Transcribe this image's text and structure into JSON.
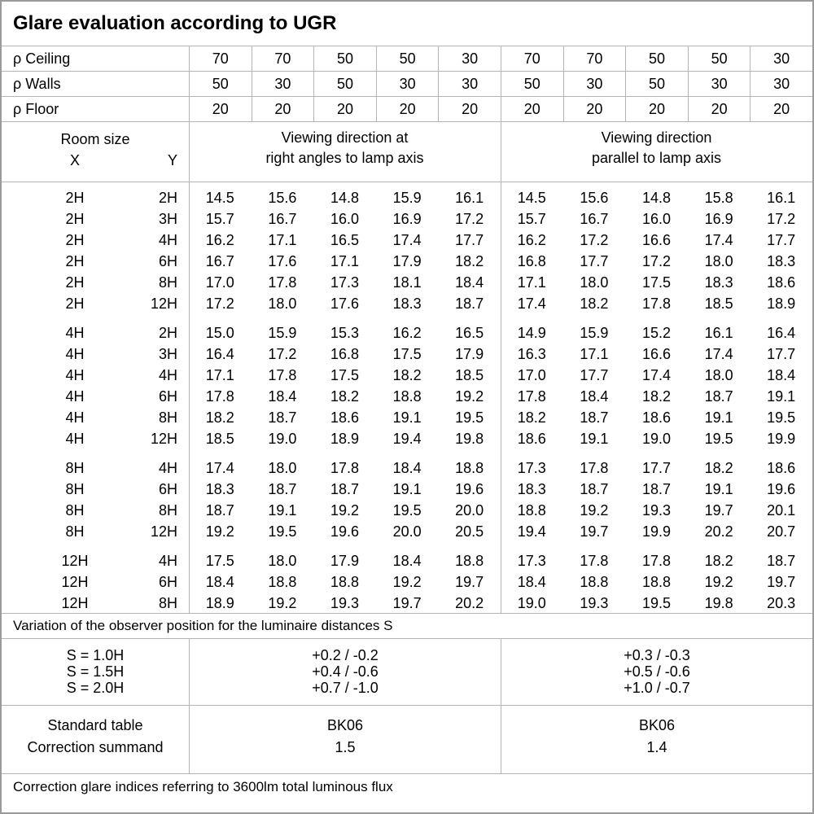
{
  "title": "Glare evaluation according to UGR",
  "reflectance_table": {
    "rows": [
      {
        "id": "ceiling",
        "label": "ρ Ceiling",
        "values": [
          "70",
          "70",
          "50",
          "50",
          "30",
          "70",
          "70",
          "50",
          "50",
          "30"
        ]
      },
      {
        "id": "walls",
        "label": "ρ Walls",
        "values": [
          "50",
          "30",
          "50",
          "30",
          "30",
          "50",
          "30",
          "50",
          "30",
          "30"
        ]
      },
      {
        "id": "floor",
        "label": "ρ Floor",
        "values": [
          "20",
          "20",
          "20",
          "20",
          "20",
          "20",
          "20",
          "20",
          "20",
          "20"
        ]
      }
    ]
  },
  "header": {
    "room_size_label": "Room size",
    "x_label": "X",
    "y_label": "Y",
    "right_angles_line1": "Viewing direction at",
    "right_angles_line2": "right angles to lamp axis",
    "parallel_line1": "Viewing direction",
    "parallel_line2": "parallel to lamp axis"
  },
  "ugr_table": {
    "blocks": [
      {
        "rows": [
          {
            "x": "2H",
            "y": "2H",
            "right_angles": [
              "14.5",
              "15.6",
              "14.8",
              "15.9",
              "16.1"
            ],
            "parallel": [
              "14.5",
              "15.6",
              "14.8",
              "15.8",
              "16.1"
            ]
          },
          {
            "x": "2H",
            "y": "3H",
            "right_angles": [
              "15.7",
              "16.7",
              "16.0",
              "16.9",
              "17.2"
            ],
            "parallel": [
              "15.7",
              "16.7",
              "16.0",
              "16.9",
              "17.2"
            ]
          },
          {
            "x": "2H",
            "y": "4H",
            "right_angles": [
              "16.2",
              "17.1",
              "16.5",
              "17.4",
              "17.7"
            ],
            "parallel": [
              "16.2",
              "17.2",
              "16.6",
              "17.4",
              "17.7"
            ]
          },
          {
            "x": "2H",
            "y": "6H",
            "right_angles": [
              "16.7",
              "17.6",
              "17.1",
              "17.9",
              "18.2"
            ],
            "parallel": [
              "16.8",
              "17.7",
              "17.2",
              "18.0",
              "18.3"
            ]
          },
          {
            "x": "2H",
            "y": "8H",
            "right_angles": [
              "17.0",
              "17.8",
              "17.3",
              "18.1",
              "18.4"
            ],
            "parallel": [
              "17.1",
              "18.0",
              "17.5",
              "18.3",
              "18.6"
            ]
          },
          {
            "x": "2H",
            "y": "12H",
            "right_angles": [
              "17.2",
              "18.0",
              "17.6",
              "18.3",
              "18.7"
            ],
            "parallel": [
              "17.4",
              "18.2",
              "17.8",
              "18.5",
              "18.9"
            ]
          }
        ]
      },
      {
        "rows": [
          {
            "x": "4H",
            "y": "2H",
            "right_angles": [
              "15.0",
              "15.9",
              "15.3",
              "16.2",
              "16.5"
            ],
            "parallel": [
              "14.9",
              "15.9",
              "15.2",
              "16.1",
              "16.4"
            ]
          },
          {
            "x": "4H",
            "y": "3H",
            "right_angles": [
              "16.4",
              "17.2",
              "16.8",
              "17.5",
              "17.9"
            ],
            "parallel": [
              "16.3",
              "17.1",
              "16.6",
              "17.4",
              "17.7"
            ]
          },
          {
            "x": "4H",
            "y": "4H",
            "right_angles": [
              "17.1",
              "17.8",
              "17.5",
              "18.2",
              "18.5"
            ],
            "parallel": [
              "17.0",
              "17.7",
              "17.4",
              "18.0",
              "18.4"
            ]
          },
          {
            "x": "4H",
            "y": "6H",
            "right_angles": [
              "17.8",
              "18.4",
              "18.2",
              "18.8",
              "19.2"
            ],
            "parallel": [
              "17.8",
              "18.4",
              "18.2",
              "18.7",
              "19.1"
            ]
          },
          {
            "x": "4H",
            "y": "8H",
            "right_angles": [
              "18.2",
              "18.7",
              "18.6",
              "19.1",
              "19.5"
            ],
            "parallel": [
              "18.2",
              "18.7",
              "18.6",
              "19.1",
              "19.5"
            ]
          },
          {
            "x": "4H",
            "y": "12H",
            "right_angles": [
              "18.5",
              "19.0",
              "18.9",
              "19.4",
              "19.8"
            ],
            "parallel": [
              "18.6",
              "19.1",
              "19.0",
              "19.5",
              "19.9"
            ]
          }
        ]
      },
      {
        "rows": [
          {
            "x": "8H",
            "y": "4H",
            "right_angles": [
              "17.4",
              "18.0",
              "17.8",
              "18.4",
              "18.8"
            ],
            "parallel": [
              "17.3",
              "17.8",
              "17.7",
              "18.2",
              "18.6"
            ]
          },
          {
            "x": "8H",
            "y": "6H",
            "right_angles": [
              "18.3",
              "18.7",
              "18.7",
              "19.1",
              "19.6"
            ],
            "parallel": [
              "18.3",
              "18.7",
              "18.7",
              "19.1",
              "19.6"
            ]
          },
          {
            "x": "8H",
            "y": "8H",
            "right_angles": [
              "18.7",
              "19.1",
              "19.2",
              "19.5",
              "20.0"
            ],
            "parallel": [
              "18.8",
              "19.2",
              "19.3",
              "19.7",
              "20.1"
            ]
          },
          {
            "x": "8H",
            "y": "12H",
            "right_angles": [
              "19.2",
              "19.5",
              "19.6",
              "20.0",
              "20.5"
            ],
            "parallel": [
              "19.4",
              "19.7",
              "19.9",
              "20.2",
              "20.7"
            ]
          }
        ]
      },
      {
        "rows": [
          {
            "x": "12H",
            "y": "4H",
            "right_angles": [
              "17.5",
              "18.0",
              "17.9",
              "18.4",
              "18.8"
            ],
            "parallel": [
              "17.3",
              "17.8",
              "17.8",
              "18.2",
              "18.7"
            ]
          },
          {
            "x": "12H",
            "y": "6H",
            "right_angles": [
              "18.4",
              "18.8",
              "18.8",
              "19.2",
              "19.7"
            ],
            "parallel": [
              "18.4",
              "18.8",
              "18.8",
              "19.2",
              "19.7"
            ]
          },
          {
            "x": "12H",
            "y": "8H",
            "right_angles": [
              "18.9",
              "19.2",
              "19.3",
              "19.7",
              "20.2"
            ],
            "parallel": [
              "19.0",
              "19.3",
              "19.5",
              "19.8",
              "20.3"
            ]
          }
        ]
      }
    ]
  },
  "variation_note": "Variation of the observer position for the luminaire distances S",
  "spacing_correction": {
    "rows": [
      {
        "label": "S = 1.0H",
        "right_angles": "+0.2 / -0.2",
        "parallel": "+0.3 / -0.3"
      },
      {
        "label": "S = 1.5H",
        "right_angles": "+0.4 / -0.6",
        "parallel": "+0.5 / -0.6"
      },
      {
        "label": "S = 2.0H",
        "right_angles": "+0.7 / -1.0",
        "parallel": "+1.0 / -0.7"
      }
    ]
  },
  "standard_info": {
    "row1_label": "Standard table",
    "row2_label": "Correction summand",
    "right_angles": {
      "standard_table": "BK06",
      "correction_summand": "1.5"
    },
    "parallel": {
      "standard_table": "BK06",
      "correction_summand": "1.4"
    }
  },
  "footer_note": "Correction glare indices referring to 3600lm total luminous flux"
}
